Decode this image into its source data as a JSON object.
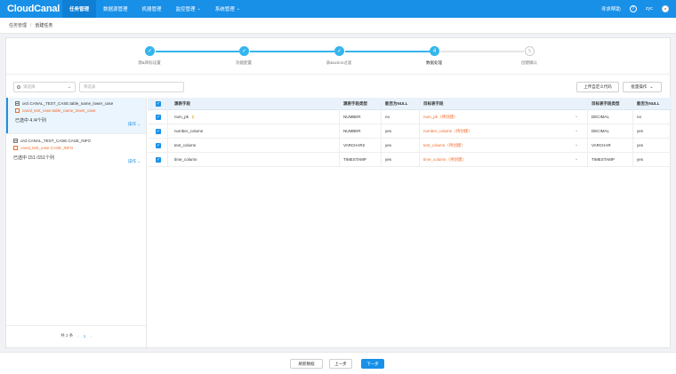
{
  "header": {
    "logo": "CloudCanal",
    "nav": [
      {
        "label": "任务管理",
        "active": true,
        "dropdown": false
      },
      {
        "label": "数据源管理",
        "active": false,
        "dropdown": false
      },
      {
        "label": "机器管理",
        "active": false,
        "dropdown": false
      },
      {
        "label": "监控管理",
        "active": false,
        "dropdown": true
      },
      {
        "label": "系统管理",
        "active": false,
        "dropdown": true
      }
    ],
    "help_label": "寻求帮助",
    "user": "zyc",
    "brand_color": "#1890e8"
  },
  "breadcrumb": {
    "root": "任务管理",
    "current": "创建任务"
  },
  "steps": [
    {
      "label": "源&目标设置",
      "status": "done"
    },
    {
      "label": "功能配置",
      "status": "done"
    },
    {
      "label": "表&action过滤",
      "status": "done"
    },
    {
      "label": "数据处理",
      "status": "current",
      "number": "4"
    },
    {
      "label": "创建确认",
      "status": "pending",
      "number": "5"
    }
  ],
  "toolbar": {
    "select_placeholder": "请选择",
    "filter_placeholder": "筛选表",
    "upload_button": "上传自定义代码",
    "batch_button": "批量操作"
  },
  "left_tables": [
    {
      "source": "orcl.CANAL_TEST_CASE.table_name_lower_case",
      "target": "canal_test_case.table_name_lower_case",
      "count": "已选中 4 /4个列",
      "op": "操作",
      "selected": true
    },
    {
      "source": "orcl.CANAL_TEST_CASE.CASE_INFO",
      "target": "canal_test_case.CASE_INFO",
      "count": "已选中 151 /151个列",
      "op": "操作",
      "selected": false
    }
  ],
  "pager": {
    "total": "共 2 条",
    "page": "1",
    "prev": "‹",
    "next": "›"
  },
  "columns_table": {
    "headers": [
      "源表字段",
      "源表字段类型",
      "能否为NULL",
      "目标表字段",
      "目标表字段类型",
      "能否为NULL"
    ],
    "rows": [
      {
        "src": "num_pk",
        "pk": true,
        "src_type": "NUMBER",
        "src_null": "no",
        "target": "num_pk（待创建）",
        "target_type": "DECIMAL",
        "target_null": "no"
      },
      {
        "src": "number_column",
        "pk": false,
        "src_type": "NUMBER",
        "src_null": "yes",
        "target": "number_column（待创建）",
        "target_type": "DECIMAL",
        "target_null": "yes"
      },
      {
        "src": "text_column",
        "pk": false,
        "src_type": "VARCHAR2",
        "src_null": "yes",
        "target": "text_column（待创建）",
        "target_type": "VARCHAR",
        "target_null": "yes"
      },
      {
        "src": "time_column",
        "pk": false,
        "src_type": "TIMESTAMP",
        "src_null": "yes",
        "target": "time_column（待创建）",
        "target_type": "TIMESTAMP",
        "target_null": "yes"
      }
    ]
  },
  "footer": {
    "refresh": "刷新数据",
    "prev": "上一步",
    "next": "下一步"
  }
}
